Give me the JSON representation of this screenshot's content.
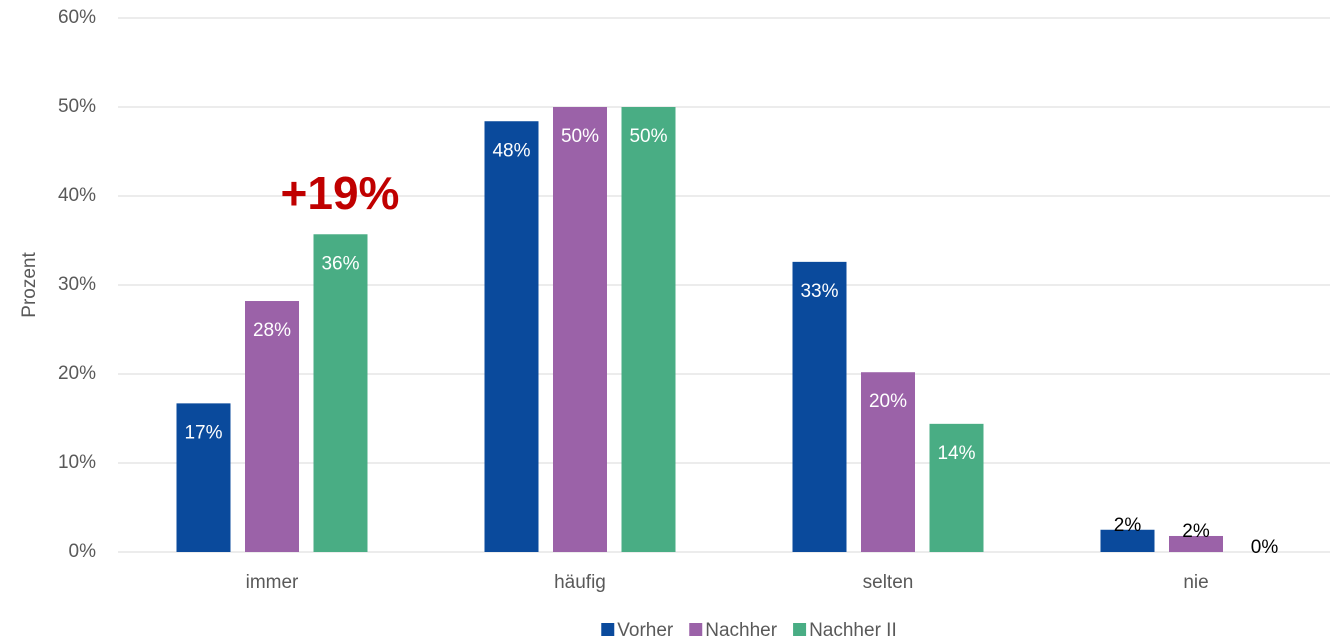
{
  "chart_data": {
    "type": "bar",
    "y_axis_label": "Prozent",
    "annotation": "+19%",
    "categories": [
      "immer",
      "häufig",
      "selten",
      "nie"
    ],
    "series": [
      {
        "name": "Vorher",
        "color": "#0a4a9c",
        "values": [
          16.7,
          48.4,
          32.6,
          2.5
        ],
        "value_labels": [
          "17%",
          "48%",
          "33%",
          "2%"
        ]
      },
      {
        "name": "Nachher",
        "color": "#9b62a8",
        "values": [
          28.2,
          50.0,
          20.2,
          1.8
        ],
        "value_labels": [
          "28%",
          "50%",
          "20%",
          "2%"
        ]
      },
      {
        "name": "Nachher II",
        "color": "#49ad84",
        "values": [
          35.7,
          50.0,
          14.4,
          0
        ],
        "value_labels": [
          "36%",
          "50%",
          "14%",
          "0%"
        ]
      }
    ],
    "ylim": [
      0,
      60
    ],
    "yticks": [
      {
        "value": 0,
        "label": "0%"
      },
      {
        "value": 10,
        "label": "10%"
      },
      {
        "value": 20,
        "label": "20%"
      },
      {
        "value": 30,
        "label": "30%"
      },
      {
        "value": 40,
        "label": "40%"
      },
      {
        "value": 50,
        "label": "50%"
      },
      {
        "value": 60,
        "label": "60%"
      }
    ],
    "grid": true,
    "legend": "bottom"
  }
}
